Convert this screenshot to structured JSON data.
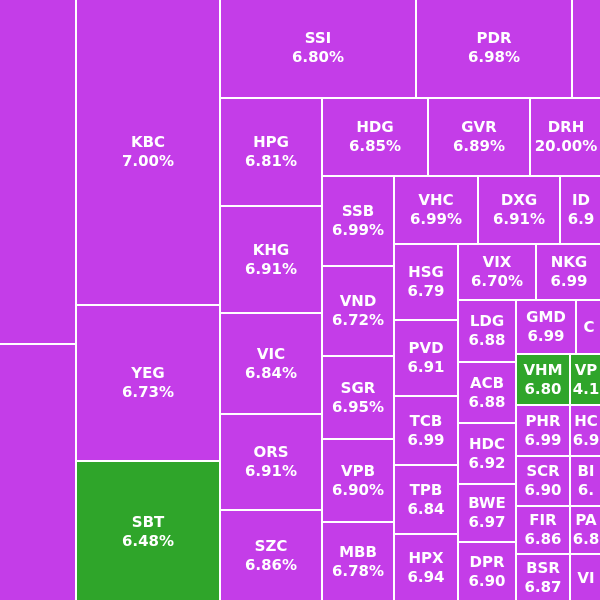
{
  "colors": {
    "purple": "#c43de8",
    "green": "#2fa52a",
    "border": "#ffffff"
  },
  "chart_data": {
    "type": "treemap",
    "tiles": [
      {
        "ticker": "",
        "change": "",
        "color": "purple"
      },
      {
        "ticker": "",
        "change": "",
        "color": "purple"
      },
      {
        "ticker": "KBC",
        "change": "7.00%",
        "color": "purple"
      },
      {
        "ticker": "YEG",
        "change": "6.73%",
        "color": "purple"
      },
      {
        "ticker": "SBT",
        "change": "6.48%",
        "color": "green"
      },
      {
        "ticker": "SSI",
        "change": "6.80%",
        "color": "purple"
      },
      {
        "ticker": "PDR",
        "change": "6.98%",
        "color": "purple"
      },
      {
        "ticker": "",
        "change": "",
        "color": "purple"
      },
      {
        "ticker": "HPG",
        "change": "6.81%",
        "color": "purple"
      },
      {
        "ticker": "KHG",
        "change": "6.91%",
        "color": "purple"
      },
      {
        "ticker": "VIC",
        "change": "6.84%",
        "color": "purple"
      },
      {
        "ticker": "ORS",
        "change": "6.91%",
        "color": "purple"
      },
      {
        "ticker": "SZC",
        "change": "6.86%",
        "color": "purple"
      },
      {
        "ticker": "HDG",
        "change": "6.85%",
        "color": "purple"
      },
      {
        "ticker": "GVR",
        "change": "6.89%",
        "color": "purple"
      },
      {
        "ticker": "DRH",
        "change": "20.00%",
        "color": "purple"
      },
      {
        "ticker": "SSB",
        "change": "6.99%",
        "color": "purple"
      },
      {
        "ticker": "VND",
        "change": "6.72%",
        "color": "purple"
      },
      {
        "ticker": "SGR",
        "change": "6.95%",
        "color": "purple"
      },
      {
        "ticker": "VPB",
        "change": "6.90%",
        "color": "purple"
      },
      {
        "ticker": "MBB",
        "change": "6.78%",
        "color": "purple"
      },
      {
        "ticker": "VHC",
        "change": "6.99%",
        "color": "purple"
      },
      {
        "ticker": "DXG",
        "change": "6.91%",
        "color": "purple"
      },
      {
        "ticker": "ID",
        "change": "6.9",
        "color": "purple"
      },
      {
        "ticker": "HSG",
        "change": "6.79",
        "color": "purple"
      },
      {
        "ticker": "PVD",
        "change": "6.91",
        "color": "purple"
      },
      {
        "ticker": "TCB",
        "change": "6.99",
        "color": "purple"
      },
      {
        "ticker": "TPB",
        "change": "6.84",
        "color": "purple"
      },
      {
        "ticker": "HPX",
        "change": "6.94",
        "color": "purple"
      },
      {
        "ticker": "VIX",
        "change": "6.70%",
        "color": "purple"
      },
      {
        "ticker": "NKG",
        "change": "6.99",
        "color": "purple"
      },
      {
        "ticker": "",
        "change": "",
        "color": "purple"
      },
      {
        "ticker": "LDG",
        "change": "6.88",
        "color": "purple"
      },
      {
        "ticker": "ACB",
        "change": "6.88",
        "color": "purple"
      },
      {
        "ticker": "HDC",
        "change": "6.92",
        "color": "purple"
      },
      {
        "ticker": "BWE",
        "change": "6.97",
        "color": "purple"
      },
      {
        "ticker": "DPR",
        "change": "6.90",
        "color": "purple"
      },
      {
        "ticker": "GMD",
        "change": "6.99",
        "color": "purple"
      },
      {
        "ticker": "C",
        "change": "",
        "color": "purple"
      },
      {
        "ticker": "VHM",
        "change": "6.80",
        "color": "green"
      },
      {
        "ticker": "VP",
        "change": "4.1",
        "color": "green"
      },
      {
        "ticker": "PHR",
        "change": "6.99",
        "color": "purple"
      },
      {
        "ticker": "HC",
        "change": "6.9",
        "color": "purple"
      },
      {
        "ticker": "SCR",
        "change": "6.90",
        "color": "purple"
      },
      {
        "ticker": "BI",
        "change": "6.",
        "color": "purple"
      },
      {
        "ticker": "FIR",
        "change": "6.86",
        "color": "purple"
      },
      {
        "ticker": "PA",
        "change": "6.8",
        "color": "purple"
      },
      {
        "ticker": "BSR",
        "change": "6.87",
        "color": "purple"
      },
      {
        "ticker": "VI",
        "change": "",
        "color": "purple"
      }
    ]
  }
}
